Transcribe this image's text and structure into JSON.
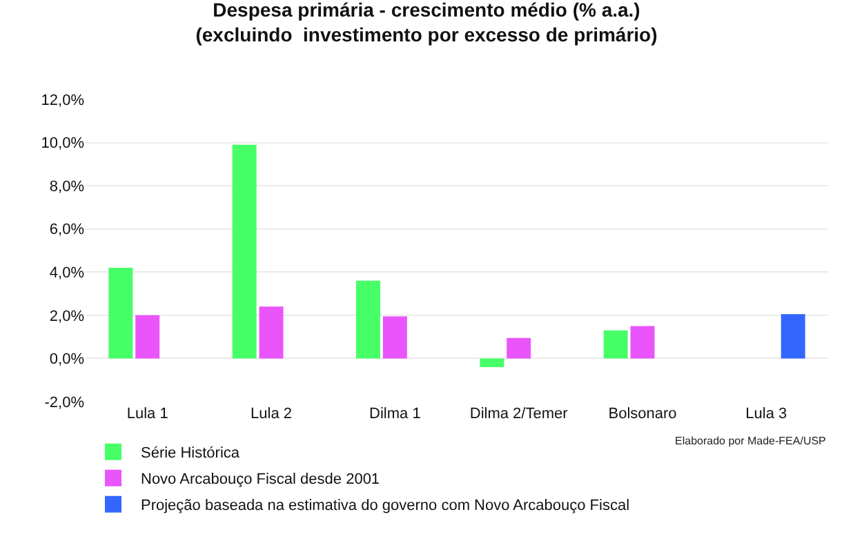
{
  "chart_data": {
    "type": "bar",
    "title": "Despesa primária - crescimento médio (% a.a.)",
    "subtitle": "(excluindo  investimento por excesso de primário)",
    "categories": [
      "Lula 1",
      "Lula 2",
      "Dilma 1",
      "Dilma 2/Temer",
      "Bolsonaro",
      "Lula 3"
    ],
    "series": [
      {
        "name": "Série Histórica",
        "color": "#47ff66",
        "values": [
          4.2,
          9.9,
          3.6,
          -0.4,
          1.3,
          null
        ]
      },
      {
        "name": "Novo Arcabouço Fiscal desde 2001",
        "color": "#ea55fb",
        "values": [
          2.0,
          2.4,
          1.95,
          0.95,
          1.5,
          null
        ]
      },
      {
        "name": "Projeção baseada na estimativa do governo com Novo Arcabouço Fiscal",
        "color": "#3366ff",
        "values": [
          null,
          null,
          null,
          null,
          null,
          2.05
        ]
      }
    ],
    "ylim": [
      -2,
      12
    ],
    "yticks": [
      {
        "value": -2,
        "label": "-2,0%"
      },
      {
        "value": 0,
        "label": "0,0%"
      },
      {
        "value": 2,
        "label": "2,0%"
      },
      {
        "value": 4,
        "label": "4,0%"
      },
      {
        "value": 6,
        "label": "6,0%"
      },
      {
        "value": 8,
        "label": "8,0%"
      },
      {
        "value": 10,
        "label": "10,0%"
      },
      {
        "value": 12,
        "label": "12,0%"
      }
    ],
    "grid": "y",
    "legend": "bottom",
    "annotations": [
      "Elaborado por Made-FEA/USP"
    ]
  }
}
